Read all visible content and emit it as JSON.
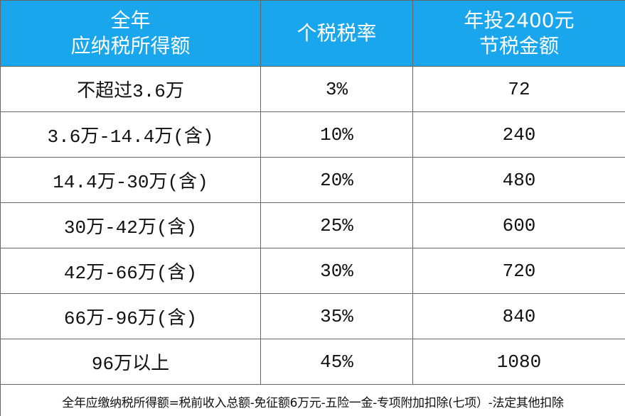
{
  "table": {
    "header": [
      [
        "全年",
        "应纳税所得额"
      ],
      [
        "个税税率"
      ],
      [
        "年投2400元",
        "节税金额"
      ]
    ],
    "rows": [
      [
        "不超过3.6万",
        "3%",
        "72"
      ],
      [
        "3.6万-14.4万(含)",
        "10%",
        "240"
      ],
      [
        "14.4万-30万(含)",
        "20%",
        "480"
      ],
      [
        "30万-42万(含)",
        "25%",
        "600"
      ],
      [
        "42万-66万(含)",
        "30%",
        "720"
      ],
      [
        "66万-96万(含)",
        "35%",
        "840"
      ],
      [
        "96万以上",
        "45%",
        "1080"
      ]
    ]
  },
  "note": "全年应缴纳税所得额=税前收入总额-免征额6万元-五险一金-专项附加扣除(七项）-法定其他扣除"
}
